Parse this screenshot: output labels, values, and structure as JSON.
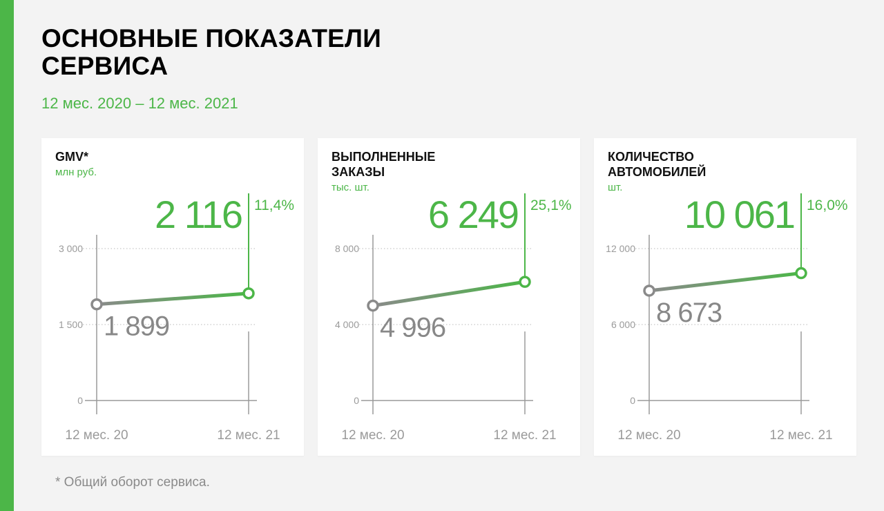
{
  "header": {
    "title": "ОСНОВНЫЕ ПОКАЗАТЕЛИ\nСЕРВИСА",
    "subtitle": "12 мес. 2020 – 12 мес. 2021"
  },
  "footnote": "* Общий оборот сервиса.",
  "colors": {
    "accent": "#4cb648",
    "start_point": "#8a8a8a",
    "gridline": "#b9b9b9",
    "axis_text": "#9a9a9a",
    "background": "#f3f3f3",
    "card": "#ffffff"
  },
  "chart_data": [
    {
      "type": "line",
      "title": "GMV*",
      "unit": "млн руб.",
      "categories": [
        "12 мес. 20",
        "12 мес. 21"
      ],
      "values": [
        1899,
        2116
      ],
      "start_label": "1 899",
      "end_label": "2 116",
      "change_label": "11,4%",
      "ylim": [
        0,
        3000
      ],
      "yticks": [
        0,
        1500,
        3000
      ],
      "ytick_labels": [
        "0",
        "1 500",
        "3 000"
      ],
      "grid": true
    },
    {
      "type": "line",
      "title": "ВЫПОЛНЕННЫЕ\nЗАКАЗЫ",
      "unit": "тыс. шт.",
      "categories": [
        "12 мес. 20",
        "12 мес. 21"
      ],
      "values": [
        4996,
        6249
      ],
      "start_label": "4 996",
      "end_label": "6 249",
      "change_label": "25,1%",
      "ylim": [
        0,
        8000
      ],
      "yticks": [
        0,
        4000,
        8000
      ],
      "ytick_labels": [
        "0",
        "4 000",
        "8 000"
      ],
      "grid": true
    },
    {
      "type": "line",
      "title": "КОЛИЧЕСТВО\nАВТОМОБИЛЕЙ",
      "unit": "шт.",
      "categories": [
        "12 мес. 20",
        "12 мес. 21"
      ],
      "values": [
        8673,
        10061
      ],
      "start_label": "8 673",
      "end_label": "10 061",
      "change_label": "16,0%",
      "ylim": [
        0,
        12000
      ],
      "yticks": [
        0,
        6000,
        12000
      ],
      "ytick_labels": [
        "0",
        "6 000",
        "12 000"
      ],
      "grid": true
    }
  ]
}
